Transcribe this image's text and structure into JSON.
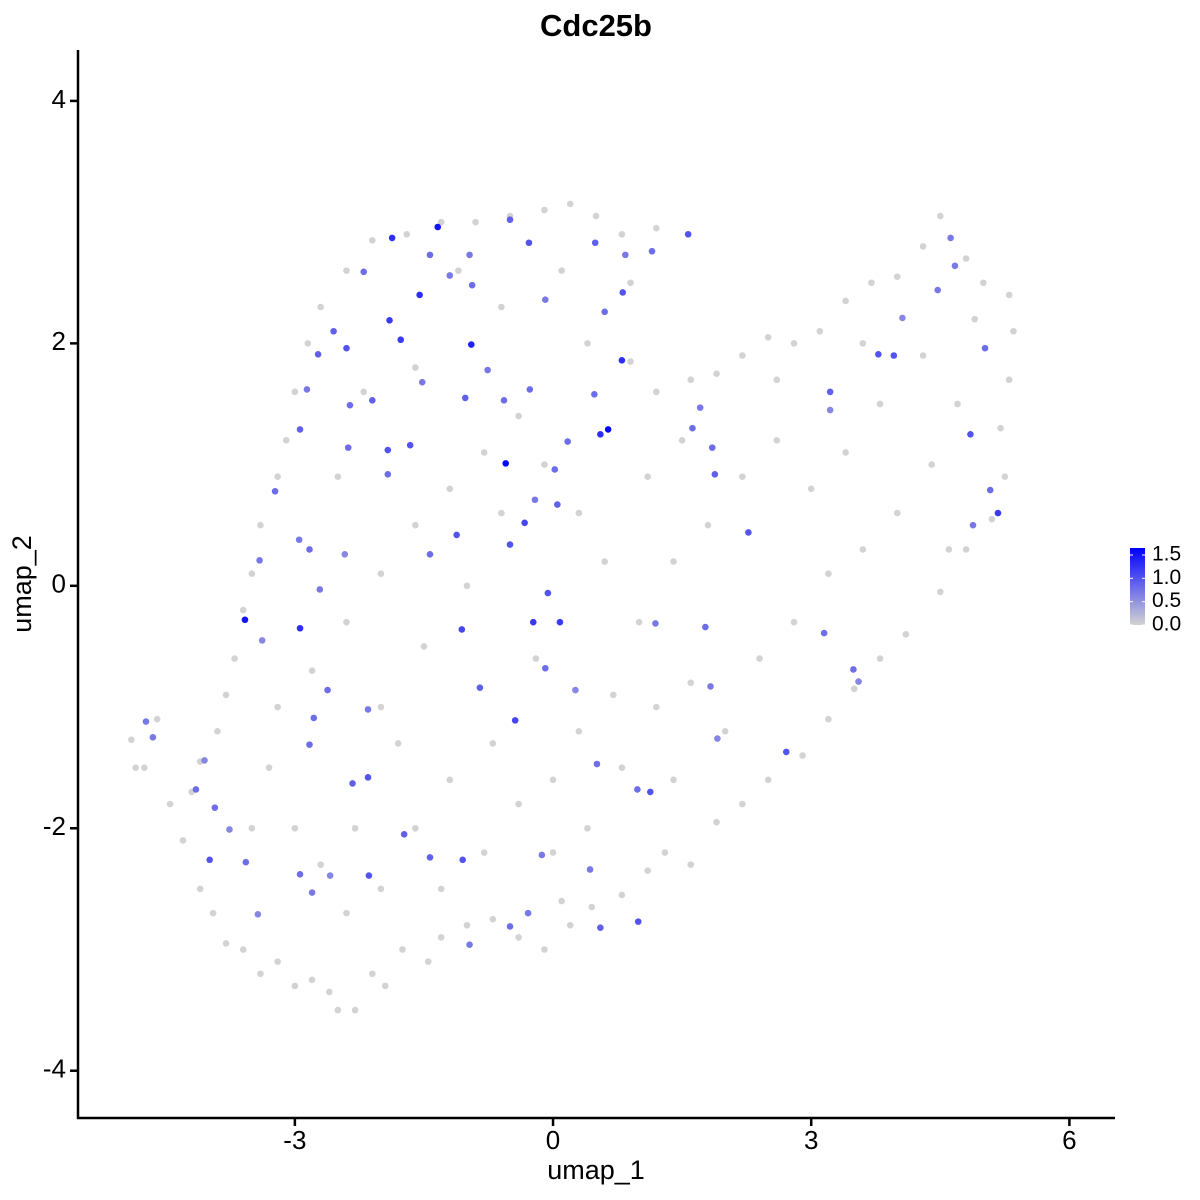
{
  "chart_data": {
    "type": "scatter",
    "title": "Cdc25b",
    "xlabel": "umap_1",
    "ylabel": "umap_2",
    "xlim": [
      -5.52,
      6.53
    ],
    "ylim": [
      -4.39,
      4.42
    ],
    "xticks": [
      -3,
      0,
      3,
      6
    ],
    "yticks": [
      -4,
      -2,
      0,
      2,
      4
    ],
    "x": [
      -4.9,
      -4.75,
      -4.45,
      -4.2,
      -4.1,
      -4.3,
      -4.1,
      -3.95,
      -3.8,
      -3.6,
      -3.4,
      -3.2,
      -3.0,
      -2.8,
      -2.6,
      -2.5,
      -2.3,
      -2.1,
      -1.95,
      -1.75,
      -1.45,
      -1.3,
      -1.0,
      -0.7,
      -0.4,
      -0.1,
      0.2,
      0.45,
      0.8,
      1.1,
      1.3,
      1.6,
      1.9,
      2.2,
      2.5,
      2.9,
      3.2,
      3.5,
      3.8,
      4.1,
      4.5,
      4.8,
      5.1,
      5.25,
      5.2,
      5.3,
      5.35,
      5.3,
      5.0,
      4.8,
      4.5,
      4.3,
      4.0,
      3.7,
      3.4,
      3.1,
      2.8,
      2.5,
      2.2,
      1.9,
      1.6,
      1.2,
      0.9,
      0.9,
      1.2,
      0.8,
      0.5,
      0.2,
      -0.1,
      -0.5,
      -0.9,
      -1.3,
      -1.7,
      -2.1,
      -2.4,
      -2.7,
      -2.85,
      -3.0,
      -3.1,
      -3.2,
      -3.4,
      -3.5,
      -3.6,
      -3.7,
      -3.8,
      -3.9,
      -3.3,
      -3.0,
      -2.7,
      -2.4,
      -2.0,
      -1.6,
      -1.2,
      -0.8,
      -0.4,
      0,
      0.4,
      0.8,
      1.2,
      1.6,
      2.0,
      2.4,
      2.8,
      3.2,
      3.6,
      4.0,
      4.4,
      4.7,
      4.3,
      3.8,
      3.4,
      3.0,
      2.6,
      2.2,
      1.8,
      1.4,
      1.0,
      0.6,
      0.3,
      -0.1,
      -0.4,
      -0.8,
      -1.2,
      -1.6,
      -2.0,
      -2.4,
      -2.8,
      -3.2,
      -2.0,
      -1.5,
      -1.0,
      -0.6,
      -0.2,
      0.3,
      0.7,
      1.1,
      1.5,
      0.4,
      -0.6,
      -1.6,
      -2.2,
      -2.5,
      -1.1,
      0.1,
      2.6,
      3.6,
      4.9,
      4.6,
      -3.5,
      -1.8,
      -0.7,
      0.0,
      1.4,
      -2.3,
      -1.3,
      0.1,
      -4.6,
      -4.85,
      -1.34,
      0.64,
      -0.55,
      0.55,
      -3.58,
      -2.94,
      -0.95,
      -1.87,
      -1.55,
      -1.9,
      -1.77,
      1.57,
      -0.28,
      -0.5,
      3.22,
      4.85,
      5.17,
      -1.06,
      -0.23,
      0.08,
      -0.06,
      -0.33,
      -0.5,
      -1.12,
      0.81,
      1.15,
      0.49,
      -2.2,
      -2.4,
      -2.55,
      -2.94,
      -3.23,
      -2.83,
      -3.41,
      -2.71,
      -3.38,
      -4.15,
      -3.99,
      -3.76,
      -3.57,
      -3.43,
      -2.94,
      -2.8,
      -2.59,
      -2.14,
      -2.33,
      -2.15,
      -2.83,
      -2.78,
      -2.62,
      -2.15,
      -1.73,
      -1.43,
      -1.05,
      -0.97,
      -0.44,
      -0.85,
      -0.09,
      0.26,
      0.51,
      0.98,
      1.13,
      0.99,
      0.43,
      0.55,
      -0.13,
      -0.29,
      -0.5,
      1.19,
      1.77,
      1.83,
      1.91,
      2.71,
      3.15,
      3.49,
      3.55,
      2.27,
      1.88,
      1.85,
      1.62,
      1.71,
      3.22,
      3.78,
      3.96,
      4.06,
      4.47,
      4.62,
      4.67,
      5.02,
      5.08,
      4.88,
      -4.73,
      -4.65,
      -4.05,
      -3.93,
      -2.42,
      -2.36,
      -2.1,
      -1.66,
      -1.02,
      -0.57,
      0.02,
      0.17,
      -0.27,
      -0.76,
      -1.52,
      -2.73,
      -2.86,
      -0.94,
      -1.2,
      -1.43,
      -0.97,
      -0.09,
      0.84,
      0.6,
      0.48,
      0.8,
      0.05,
      -0.21,
      -1.43,
      -1.92,
      -1.92,
      -2.38,
      -2.95
    ],
    "y": [
      -1.27,
      -1.5,
      -1.8,
      -1.7,
      -1.45,
      -2.1,
      -2.5,
      -2.7,
      -2.95,
      -3.0,
      -3.2,
      -3.1,
      -3.3,
      -3.25,
      -3.35,
      -3.5,
      -3.5,
      -3.2,
      -3.3,
      -3.0,
      -3.1,
      -2.9,
      -2.8,
      -2.75,
      -2.9,
      -3.0,
      -2.8,
      -2.65,
      -2.55,
      -2.35,
      -2.2,
      -2.3,
      -1.95,
      -1.8,
      -1.6,
      -1.4,
      -1.1,
      -0.85,
      -0.6,
      -0.4,
      -0.05,
      0.3,
      0.55,
      0.9,
      1.3,
      1.7,
      2.1,
      2.4,
      2.5,
      2.7,
      3.05,
      2.8,
      2.55,
      2.5,
      2.35,
      2.1,
      2.0,
      2.05,
      1.9,
      1.75,
      1.7,
      1.6,
      1.85,
      2.5,
      2.95,
      2.9,
      3.05,
      3.15,
      3.1,
      3.05,
      3.0,
      3.0,
      2.9,
      2.85,
      2.6,
      2.3,
      2.0,
      1.6,
      1.2,
      0.9,
      0.5,
      0.1,
      -0.2,
      -0.6,
      -0.9,
      -1.2,
      -1.5,
      -2.0,
      -2.3,
      -2.7,
      -2.5,
      -2.0,
      -1.6,
      -2.2,
      -1.8,
      -2.2,
      -2.0,
      -1.5,
      -1.0,
      -0.8,
      -1.2,
      -0.6,
      -0.3,
      0.1,
      0.3,
      0.6,
      1.0,
      1.5,
      1.9,
      1.5,
      1.1,
      0.8,
      1.2,
      0.9,
      0.5,
      0.2,
      -0.3,
      0.2,
      0.6,
      1.0,
      1.4,
      1.1,
      0.8,
      0.5,
      0.1,
      -0.3,
      -0.7,
      -1.0,
      -1.0,
      -0.5,
      0.0,
      0.6,
      -0.6,
      -1.2,
      -0.9,
      0.9,
      1.2,
      2.0,
      2.3,
      1.8,
      1.6,
      0.9,
      2.6,
      2.6,
      1.7,
      2.0,
      2.2,
      0.3,
      -2.0,
      -1.3,
      -1.3,
      -1.6,
      -1.6,
      -2.0,
      -2.5,
      -2.6,
      -1.1,
      -1.5,
      2.96,
      1.29,
      1.01,
      1.25,
      -0.28,
      -0.35,
      1.99,
      2.87,
      2.4,
      2.19,
      2.03,
      2.9,
      2.83,
      3.02,
      1.6,
      1.25,
      0.6,
      -0.36,
      -0.3,
      -0.3,
      -0.06,
      0.52,
      0.34,
      0.42,
      2.42,
      2.76,
      2.83,
      2.59,
      1.96,
      2.1,
      1.29,
      0.78,
      0.3,
      0.21,
      -0.03,
      -0.45,
      -1.68,
      -2.26,
      -2.01,
      -2.28,
      -2.71,
      -2.38,
      -2.53,
      -2.39,
      -2.39,
      -1.63,
      -1.58,
      -1.31,
      -1.09,
      -0.86,
      -1.02,
      -2.05,
      -2.24,
      -2.26,
      -2.96,
      -1.11,
      -0.84,
      -0.68,
      -0.86,
      -1.47,
      -1.68,
      -1.7,
      -2.77,
      -2.34,
      -2.82,
      -2.22,
      -2.7,
      -2.81,
      -0.31,
      -0.34,
      -0.83,
      -1.26,
      -1.37,
      -0.39,
      -0.69,
      -0.79,
      0.44,
      0.92,
      1.14,
      1.3,
      1.47,
      1.45,
      1.91,
      1.9,
      2.21,
      2.44,
      2.87,
      2.64,
      1.96,
      0.79,
      0.5,
      -1.12,
      -1.25,
      -1.44,
      -1.83,
      0.26,
      1.49,
      1.53,
      1.16,
      1.55,
      1.53,
      0.96,
      1.19,
      1.62,
      1.78,
      1.68,
      1.91,
      1.62,
      2.48,
      2.56,
      2.73,
      2.73,
      2.36,
      2.73,
      2.26,
      1.58,
      1.86,
      0.67,
      0.71,
      0.26,
      1.12,
      0.92,
      1.14,
      0.38
    ],
    "values": [
      0,
      0,
      0,
      0,
      0,
      0,
      0,
      0,
      0,
      0,
      0,
      0,
      0,
      0,
      0,
      0,
      0,
      0,
      0,
      0,
      0,
      0,
      0,
      0,
      0,
      0,
      0,
      0,
      0,
      0,
      0,
      0,
      0,
      0,
      0,
      0,
      0,
      0,
      0,
      0,
      0,
      0,
      0,
      0,
      0,
      0,
      0,
      0,
      0,
      0,
      0,
      0,
      0,
      0,
      0,
      0,
      0,
      0,
      0,
      0,
      0,
      0,
      0,
      0,
      0,
      0,
      0,
      0,
      0,
      0,
      0,
      0,
      0,
      0,
      0,
      0,
      0,
      0,
      0,
      0,
      0,
      0,
      0,
      0,
      0,
      0,
      0,
      0,
      0,
      0,
      0,
      0,
      0,
      0,
      0,
      0,
      0,
      0,
      0,
      0,
      0,
      0,
      0,
      0,
      0,
      0,
      0,
      0,
      0,
      0,
      0,
      0,
      0,
      0,
      0,
      0,
      0,
      0,
      0,
      0,
      0,
      0,
      0,
      0,
      0,
      0,
      0,
      0,
      0,
      0,
      0,
      0,
      0,
      0,
      0,
      0,
      0,
      0,
      0,
      0,
      0,
      0,
      0,
      0,
      0,
      0,
      0,
      0,
      0,
      0,
      0,
      0,
      0,
      0,
      0,
      0,
      0,
      0,
      1.5,
      1.6,
      1.6,
      1.3,
      1.5,
      1.3,
      1.4,
      1.3,
      1.3,
      1.2,
      1.2,
      1.0,
      1.0,
      0.9,
      0.9,
      1.0,
      1.2,
      1.1,
      1.2,
      1.2,
      1.0,
      1.1,
      1.0,
      1.0,
      1.0,
      0.8,
      0.9,
      0.8,
      1.0,
      0.9,
      0.9,
      0.8,
      0.8,
      0.7,
      0.7,
      0.6,
      0.8,
      1.0,
      0.6,
      0.8,
      0.6,
      0.8,
      0.7,
      0.6,
      1.0,
      0.9,
      1.0,
      0.8,
      0.8,
      0.8,
      0.7,
      0.9,
      0.9,
      1.0,
      0.7,
      1.1,
      0.9,
      0.8,
      0.6,
      0.8,
      0.8,
      1.0,
      1.0,
      0.7,
      0.9,
      0.7,
      0.7,
      0.8,
      0.7,
      0.8,
      0.7,
      0.6,
      1.0,
      0.8,
      0.8,
      0.6,
      1.0,
      0.9,
      0.8,
      0.8,
      0.7,
      0.6,
      1.0,
      1.0,
      0.6,
      0.7,
      0.7,
      0.7,
      0.8,
      0.8,
      0.7,
      0.7,
      0.7,
      0.6,
      0.8,
      0.6,
      0.8,
      0.9,
      1.0,
      0.9,
      0.8,
      0.8,
      0.8,
      0.8,
      0.7,
      0.7,
      0.9,
      0.7,
      0.8,
      0.7,
      0.8,
      0.7,
      0.7,
      0.7,
      0.8,
      0.8,
      1.3,
      0.9,
      0.7,
      0.8,
      1.0,
      0.8,
      0.8,
      0.7
    ],
    "colorbar": {
      "lim": [
        0,
        1.65
      ],
      "colors": [
        "#d3d3d3",
        "#0000ff"
      ],
      "ticks": [
        {
          "value": 0,
          "label": "0.0"
        },
        {
          "value": 0.5,
          "label": "0.5"
        },
        {
          "value": 1,
          "label": "1.0"
        },
        {
          "value": 1.5,
          "label": "1.5"
        }
      ]
    }
  }
}
